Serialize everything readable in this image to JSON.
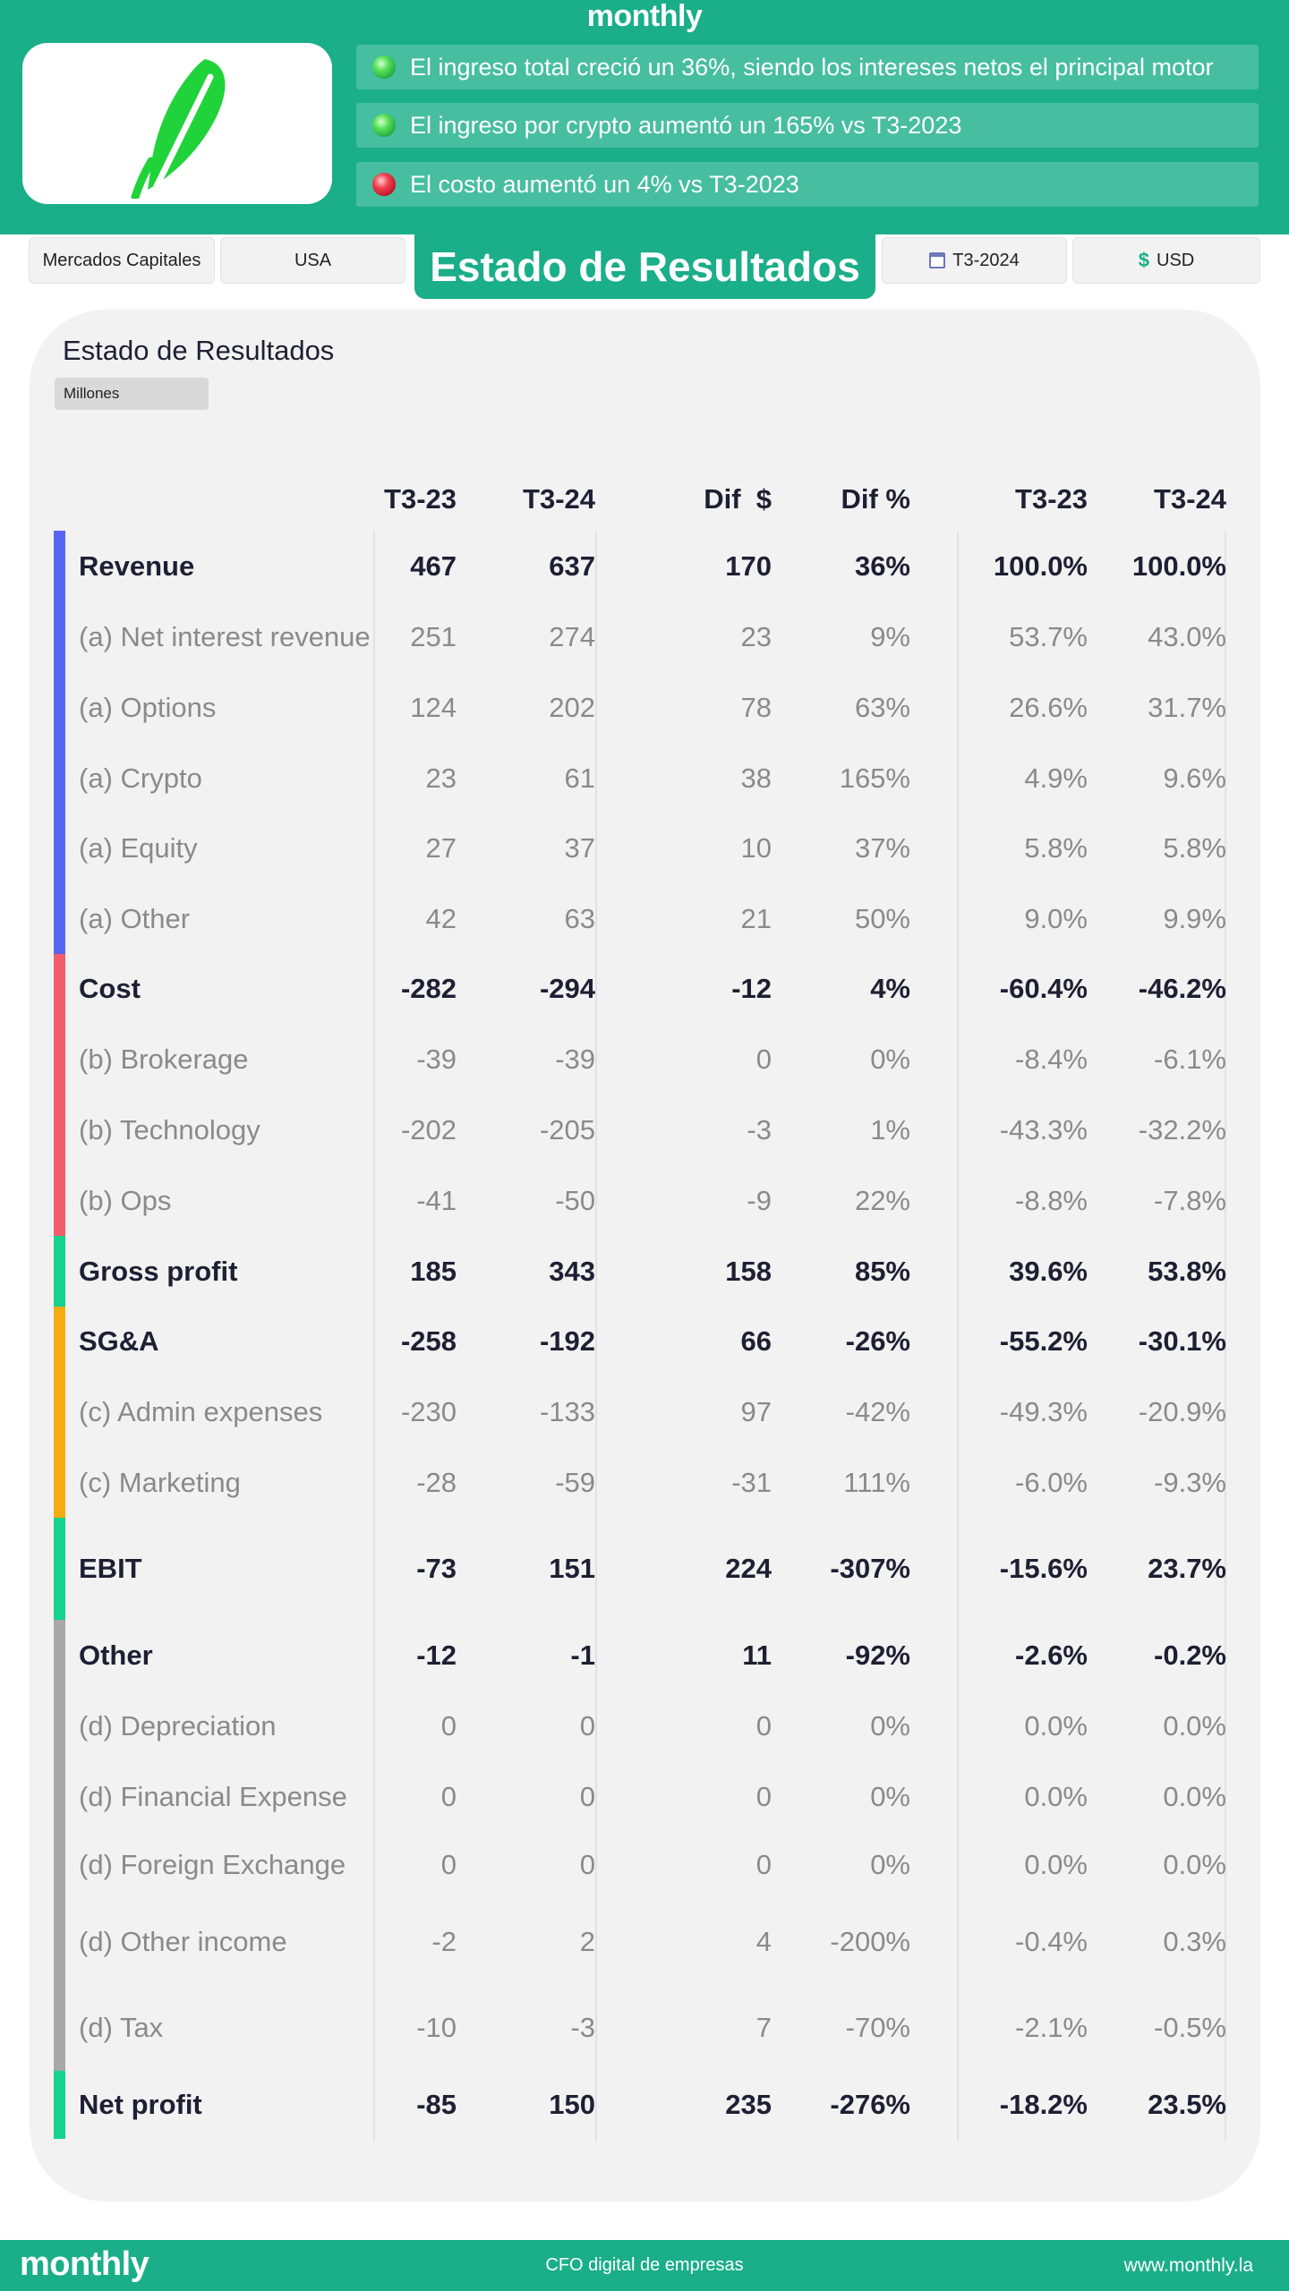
{
  "brand": "monthly",
  "highlights": [
    {
      "text": "El ingreso total creció un 36%, siendo los intereses netos el principal motor",
      "trend": "up"
    },
    {
      "text": "El ingreso por crypto aumentó un 165% vs T3-2023",
      "trend": "up"
    },
    {
      "text": "El costo aumentó un 4% vs T3-2023",
      "trend": "down"
    }
  ],
  "filters": {
    "sector": "Mercados Capitales",
    "country": "USA",
    "period": "T3-2024",
    "currency": "USD"
  },
  "page_title": "Estado de Resultados",
  "table": {
    "title": "Estado de Resultados",
    "unit": "Millones",
    "columns": [
      "T3-23",
      "T3-24",
      "Dif  $",
      "Dif %",
      "T3-23",
      "T3-24"
    ],
    "rows": [
      {
        "label": "Revenue",
        "style": "bold",
        "group": "revenue",
        "values": [
          "467",
          "637",
          "170",
          "36%",
          "100.0%",
          "100.0%"
        ]
      },
      {
        "label": "(a) Net interest revenue",
        "style": "sub",
        "group": "revenue",
        "values": [
          "251",
          "274",
          "23",
          "9%",
          "53.7%",
          "43.0%"
        ]
      },
      {
        "label": "(a) Options",
        "style": "sub",
        "group": "revenue",
        "values": [
          "124",
          "202",
          "78",
          "63%",
          "26.6%",
          "31.7%"
        ]
      },
      {
        "label": "(a) Crypto",
        "style": "sub",
        "group": "revenue",
        "values": [
          "23",
          "61",
          "38",
          "165%",
          "4.9%",
          "9.6%"
        ]
      },
      {
        "label": "(a) Equity",
        "style": "sub",
        "group": "revenue",
        "values": [
          "27",
          "37",
          "10",
          "37%",
          "5.8%",
          "5.8%"
        ]
      },
      {
        "label": "(a) Other",
        "style": "sub",
        "group": "revenue",
        "values": [
          "42",
          "63",
          "21",
          "50%",
          "9.0%",
          "9.9%"
        ]
      },
      {
        "label": "Cost",
        "style": "bold",
        "group": "cost",
        "values": [
          "-282",
          "-294",
          "-12",
          "4%",
          "-60.4%",
          "-46.2%"
        ]
      },
      {
        "label": "(b) Brokerage",
        "style": "sub",
        "group": "cost",
        "values": [
          "-39",
          "-39",
          "0",
          "0%",
          "-8.4%",
          "-6.1%"
        ]
      },
      {
        "label": "(b) Technology",
        "style": "sub",
        "group": "cost",
        "values": [
          "-202",
          "-205",
          "-3",
          "1%",
          "-43.3%",
          "-32.2%"
        ]
      },
      {
        "label": "(b) Ops",
        "style": "sub",
        "group": "cost",
        "values": [
          "-41",
          "-50",
          "-9",
          "22%",
          "-8.8%",
          "-7.8%"
        ]
      },
      {
        "label": "Gross profit",
        "style": "bold",
        "group": "profit",
        "values": [
          "185",
          "343",
          "158",
          "85%",
          "39.6%",
          "53.8%"
        ]
      },
      {
        "label": "SG&A",
        "style": "bold",
        "group": "sga",
        "values": [
          "-258",
          "-192",
          "66",
          "-26%",
          "-55.2%",
          "-30.1%"
        ]
      },
      {
        "label": "(c) Admin expenses",
        "style": "sub",
        "group": "sga",
        "values": [
          "-230",
          "-133",
          "97",
          "-42%",
          "-49.3%",
          "-20.9%"
        ]
      },
      {
        "label": "(c) Marketing",
        "style": "sub",
        "group": "sga",
        "values": [
          "-28",
          "-59",
          "-31",
          "111%",
          "-6.0%",
          "-9.3%"
        ]
      },
      {
        "label": "EBIT",
        "style": "bold",
        "group": "profit",
        "values": [
          "-73",
          "151",
          "224",
          "-307%",
          "-15.6%",
          "23.7%"
        ]
      },
      {
        "label": "Other",
        "style": "bold",
        "group": "other",
        "values": [
          "-12",
          "-1",
          "11",
          "-92%",
          "-2.6%",
          "-0.2%"
        ]
      },
      {
        "label": "(d) Depreciation",
        "style": "sub",
        "group": "other",
        "values": [
          "0",
          "0",
          "0",
          "0%",
          "0.0%",
          "0.0%"
        ]
      },
      {
        "label": "(d) Financial Expense",
        "style": "sub",
        "group": "other",
        "values": [
          "0",
          "0",
          "0",
          "0%",
          "0.0%",
          "0.0%"
        ]
      },
      {
        "label": "(d) Foreign Exchange",
        "style": "sub",
        "group": "other",
        "values": [
          "0",
          "0",
          "0",
          "0%",
          "0.0%",
          "0.0%"
        ]
      },
      {
        "label": "(d) Other income",
        "style": "sub",
        "group": "other",
        "values": [
          "-2",
          "2",
          "4",
          "-200%",
          "-0.4%",
          "0.3%"
        ]
      },
      {
        "label": "(d) Tax",
        "style": "sub",
        "group": "other",
        "values": [
          "-10",
          "-3",
          "7",
          "-70%",
          "-2.1%",
          "-0.5%"
        ]
      },
      {
        "label": "Net profit",
        "style": "bold",
        "group": "profit",
        "values": [
          "-85",
          "150",
          "235",
          "-276%",
          "-18.2%",
          "23.5%"
        ]
      }
    ]
  },
  "colors": {
    "brand_green": "#1aae89",
    "revenue": "#5865f2",
    "cost": "#f25c6b",
    "profit": "#14d38f",
    "sga": "#f5ac12",
    "other": "#a8a8a8"
  },
  "icons": {
    "logo": "feather-logo",
    "period": "calendar-icon",
    "currency": "dollar-icon"
  },
  "footer": {
    "brand": "monthly",
    "tagline": "CFO digital de empresas",
    "website": "www.monthly.la"
  }
}
